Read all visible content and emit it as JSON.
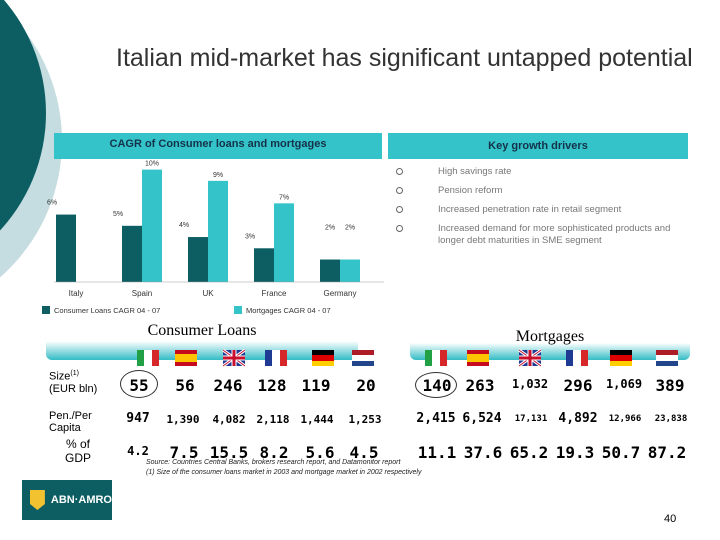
{
  "title": "Italian mid-market has significant untapped potential",
  "cagr_header": "CAGR of Consumer loans and mortgages",
  "drivers_header": "Key growth drivers",
  "drivers": [
    "High savings rate",
    "Pension reform",
    "Increased penetration rate in retail segment",
    "Increased demand for more sophisticated products and longer debt maturities in SME segment"
  ],
  "chart_data": {
    "type": "bar",
    "title": "CAGR of Consumer loans and mortgages",
    "categories": [
      "Italy",
      "Spain",
      "UK",
      "France",
      "Germany"
    ],
    "series": [
      {
        "name": "Consumer Loans CAGR 04 - 07",
        "values": [
          6,
          5,
          4,
          3,
          2
        ],
        "labels": [
          "6%",
          "5%",
          "4%",
          "3%",
          "2%"
        ],
        "color": "#0d5e63"
      },
      {
        "name": "Mortgages CAGR 04 - 07",
        "values": [
          null,
          10,
          9,
          7,
          2
        ],
        "labels": [
          "",
          "10%",
          "9%",
          "7%",
          "2%"
        ],
        "color": "#34c3c8"
      }
    ],
    "ylim": [
      0,
      10.5
    ],
    "grid": false,
    "legend_position": "bottom"
  },
  "consumer_loans_label": "Consumer Loans",
  "mortgages_label": "Mortgages",
  "row_labels": {
    "size": "Size",
    "size_sup": "(1)",
    "size_unit": "(EUR bln)",
    "pen_line1": "Pen./Per",
    "pen_line2": "Capita",
    "gdp_line1": "% of",
    "gdp_line2": "GDP"
  },
  "consumer_loans": {
    "size": [
      "55",
      "56",
      "246",
      "128",
      "119",
      "20"
    ],
    "pen_per_capita": [
      "947",
      "1,390",
      "4,082",
      "2,118",
      "1,444",
      "1,253"
    ],
    "pct_gdp": [
      "4.2",
      "7.5",
      "15.5",
      "8.2",
      "5.6",
      "4.5"
    ]
  },
  "mortgages": {
    "size": [
      "140",
      "263",
      "1,032",
      "296",
      "1,069",
      "389"
    ],
    "pen_per_capita": [
      "2,415",
      "6,524",
      "17,131",
      "4,892",
      "12,966",
      "23,838"
    ],
    "pct_gdp": [
      "11.1",
      "37.6",
      "65.2",
      "19.3",
      "50.7",
      "87.2"
    ]
  },
  "flags": [
    "italy-flag",
    "spain-flag",
    "uk-flag",
    "france-flag",
    "germany-flag",
    "netherlands-flag"
  ],
  "logo_text": "ABN·AMRO",
  "source_line1": "Source: Countries Central Banks, brokers research report, and Datamonitor report",
  "source_line2": "(1) Size of the consumer loans market in 2003 and mortgage market in 2002 respectively",
  "page_number": "40"
}
